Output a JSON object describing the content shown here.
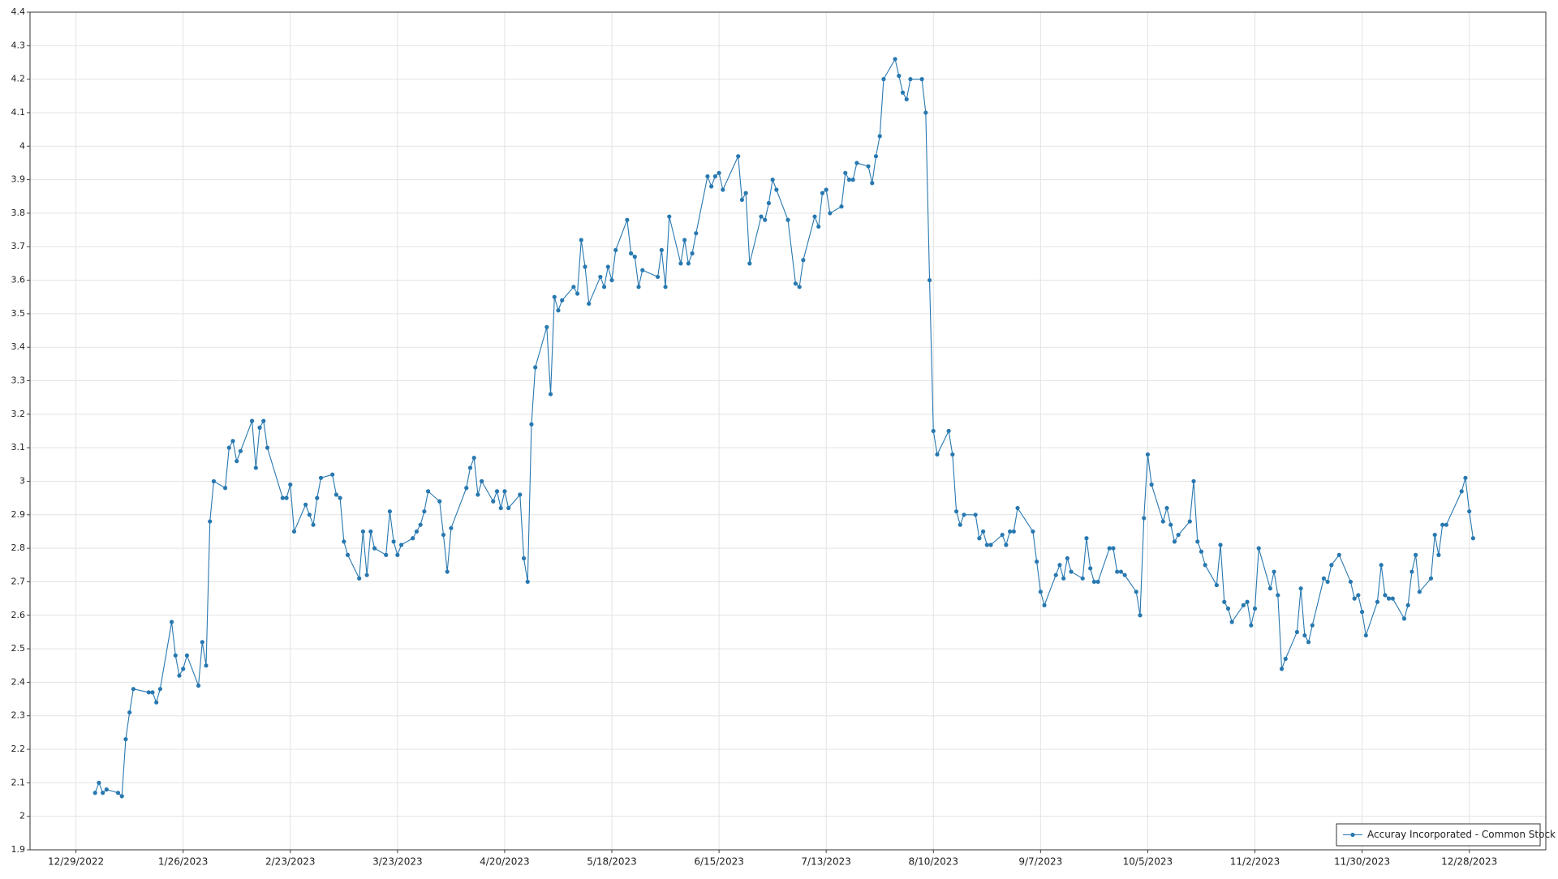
{
  "chart_data": {
    "type": "line",
    "x": [
      "1/3/2023",
      "1/4/2023",
      "1/5/2023",
      "1/6/2023",
      "1/9/2023",
      "1/10/2023",
      "1/11/2023",
      "1/12/2023",
      "1/13/2023",
      "1/17/2023",
      "1/18/2023",
      "1/19/2023",
      "1/20/2023",
      "1/23/2023",
      "1/24/2023",
      "1/25/2023",
      "1/26/2023",
      "1/27/2023",
      "1/30/2023",
      "1/31/2023",
      "2/1/2023",
      "2/2/2023",
      "2/3/2023",
      "2/6/2023",
      "2/7/2023",
      "2/8/2023",
      "2/9/2023",
      "2/10/2023",
      "2/13/2023",
      "2/14/2023",
      "2/15/2023",
      "2/16/2023",
      "2/17/2023",
      "2/21/2023",
      "2/22/2023",
      "2/23/2023",
      "2/24/2023",
      "2/27/2023",
      "2/28/2023",
      "3/1/2023",
      "3/2/2023",
      "3/3/2023",
      "3/6/2023",
      "3/7/2023",
      "3/8/2023",
      "3/9/2023",
      "3/10/2023",
      "3/13/2023",
      "3/14/2023",
      "3/15/2023",
      "3/16/2023",
      "3/17/2023",
      "3/20/2023",
      "3/21/2023",
      "3/22/2023",
      "3/23/2023",
      "3/24/2023",
      "3/27/2023",
      "3/28/2023",
      "3/29/2023",
      "3/30/2023",
      "3/31/2023",
      "4/3/2023",
      "4/4/2023",
      "4/5/2023",
      "4/6/2023",
      "4/10/2023",
      "4/11/2023",
      "4/12/2023",
      "4/13/2023",
      "4/14/2023",
      "4/17/2023",
      "4/18/2023",
      "4/19/2023",
      "4/20/2023",
      "4/21/2023",
      "4/24/2023",
      "4/25/2023",
      "4/26/2023",
      "4/27/2023",
      "4/28/2023",
      "5/1/2023",
      "5/2/2023",
      "5/3/2023",
      "5/4/2023",
      "5/5/2023",
      "5/8/2023",
      "5/9/2023",
      "5/10/2023",
      "5/11/2023",
      "5/12/2023",
      "5/15/2023",
      "5/16/2023",
      "5/17/2023",
      "5/18/2023",
      "5/19/2023",
      "5/22/2023",
      "5/23/2023",
      "5/24/2023",
      "5/25/2023",
      "5/26/2023",
      "5/30/2023",
      "5/31/2023",
      "6/1/2023",
      "6/2/2023",
      "6/5/2023",
      "6/6/2023",
      "6/7/2023",
      "6/8/2023",
      "6/9/2023",
      "6/12/2023",
      "6/13/2023",
      "6/14/2023",
      "6/15/2023",
      "6/16/2023",
      "6/20/2023",
      "6/21/2023",
      "6/22/2023",
      "6/23/2023",
      "6/26/2023",
      "6/27/2023",
      "6/28/2023",
      "6/29/2023",
      "6/30/2023",
      "7/3/2023",
      "7/5/2023",
      "7/6/2023",
      "7/7/2023",
      "7/10/2023",
      "7/11/2023",
      "7/12/2023",
      "7/13/2023",
      "7/14/2023",
      "7/17/2023",
      "7/18/2023",
      "7/19/2023",
      "7/20/2023",
      "7/21/2023",
      "7/24/2023",
      "7/25/2023",
      "7/26/2023",
      "7/27/2023",
      "7/28/2023",
      "7/31/2023",
      "8/1/2023",
      "8/2/2023",
      "8/3/2023",
      "8/4/2023",
      "8/7/2023",
      "8/8/2023",
      "8/9/2023",
      "8/10/2023",
      "8/11/2023",
      "8/14/2023",
      "8/15/2023",
      "8/16/2023",
      "8/17/2023",
      "8/18/2023",
      "8/21/2023",
      "8/22/2023",
      "8/23/2023",
      "8/24/2023",
      "8/25/2023",
      "8/28/2023",
      "8/29/2023",
      "8/30/2023",
      "8/31/2023",
      "9/1/2023",
      "9/5/2023",
      "9/6/2023",
      "9/7/2023",
      "9/8/2023",
      "9/11/2023",
      "9/12/2023",
      "9/13/2023",
      "9/14/2023",
      "9/15/2023",
      "9/18/2023",
      "9/19/2023",
      "9/20/2023",
      "9/21/2023",
      "9/22/2023",
      "9/25/2023",
      "9/26/2023",
      "9/27/2023",
      "9/28/2023",
      "9/29/2023",
      "10/2/2023",
      "10/3/2023",
      "10/4/2023",
      "10/5/2023",
      "10/6/2023",
      "10/9/2023",
      "10/10/2023",
      "10/11/2023",
      "10/12/2023",
      "10/13/2023",
      "10/16/2023",
      "10/17/2023",
      "10/18/2023",
      "10/19/2023",
      "10/20/2023",
      "10/23/2023",
      "10/24/2023",
      "10/25/2023",
      "10/26/2023",
      "10/27/2023",
      "10/30/2023",
      "10/31/2023",
      "11/1/2023",
      "11/2/2023",
      "11/3/2023",
      "11/6/2023",
      "11/7/2023",
      "11/8/2023",
      "11/9/2023",
      "11/10/2023",
      "11/13/2023",
      "11/14/2023",
      "11/15/2023",
      "11/16/2023",
      "11/17/2023",
      "11/20/2023",
      "11/21/2023",
      "11/22/2023",
      "11/24/2023",
      "11/27/2023",
      "11/28/2023",
      "11/29/2023",
      "11/30/2023",
      "12/1/2023",
      "12/4/2023",
      "12/5/2023",
      "12/6/2023",
      "12/7/2023",
      "12/8/2023",
      "12/11/2023",
      "12/12/2023",
      "12/13/2023",
      "12/14/2023",
      "12/15/2023",
      "12/18/2023",
      "12/19/2023",
      "12/20/2023",
      "12/21/2023",
      "12/22/2023",
      "12/26/2023",
      "12/27/2023",
      "12/28/2023",
      "12/29/2023"
    ],
    "series": [
      {
        "name": "Accuray Incorporated - Common Stock",
        "color": "#2878b0",
        "values": [
          2.07,
          2.1,
          2.07,
          2.08,
          2.07,
          2.06,
          2.23,
          2.31,
          2.38,
          2.37,
          2.37,
          2.34,
          2.38,
          2.58,
          2.48,
          2.42,
          2.44,
          2.48,
          2.39,
          2.52,
          2.45,
          2.88,
          3.0,
          2.98,
          3.1,
          3.12,
          3.06,
          3.09,
          3.18,
          3.04,
          3.16,
          3.18,
          3.1,
          2.95,
          2.95,
          2.99,
          2.85,
          2.93,
          2.9,
          2.87,
          2.95,
          3.01,
          3.02,
          2.96,
          2.95,
          2.82,
          2.78,
          2.71,
          2.85,
          2.72,
          2.85,
          2.8,
          2.78,
          2.91,
          2.82,
          2.78,
          2.81,
          2.83,
          2.85,
          2.87,
          2.91,
          2.97,
          2.94,
          2.84,
          2.73,
          2.86,
          2.98,
          3.04,
          3.07,
          2.96,
          3.0,
          2.94,
          2.97,
          2.92,
          2.97,
          2.92,
          2.96,
          2.77,
          2.7,
          3.17,
          3.34,
          3.46,
          3.26,
          3.55,
          3.51,
          3.54,
          3.58,
          3.56,
          3.72,
          3.64,
          3.53,
          3.61,
          3.58,
          3.64,
          3.6,
          3.69,
          3.78,
          3.68,
          3.67,
          3.58,
          3.63,
          3.61,
          3.69,
          3.58,
          3.79,
          3.65,
          3.72,
          3.65,
          3.68,
          3.74,
          3.91,
          3.88,
          3.91,
          3.92,
          3.87,
          3.97,
          3.84,
          3.86,
          3.65,
          3.79,
          3.78,
          3.83,
          3.9,
          3.87,
          3.78,
          3.59,
          3.58,
          3.66,
          3.79,
          3.76,
          3.86,
          3.87,
          3.8,
          3.82,
          3.92,
          3.9,
          3.9,
          3.95,
          3.94,
          3.89,
          3.97,
          4.03,
          4.2,
          4.26,
          4.21,
          4.16,
          4.14,
          4.2,
          4.2,
          4.1,
          3.6,
          3.15,
          3.08,
          3.15,
          3.08,
          2.91,
          2.87,
          2.9,
          2.9,
          2.83,
          2.85,
          2.81,
          2.81,
          2.84,
          2.81,
          2.85,
          2.85,
          2.92,
          2.85,
          2.76,
          2.67,
          2.63,
          2.72,
          2.75,
          2.71,
          2.77,
          2.73,
          2.71,
          2.83,
          2.74,
          2.7,
          2.7,
          2.8,
          2.8,
          2.73,
          2.73,
          2.72,
          2.67,
          2.6,
          2.89,
          3.08,
          2.99,
          2.88,
          2.92,
          2.87,
          2.82,
          2.84,
          2.88,
          3.0,
          2.82,
          2.79,
          2.75,
          2.69,
          2.81,
          2.64,
          2.62,
          2.58,
          2.63,
          2.64,
          2.57,
          2.62,
          2.8,
          2.68,
          2.73,
          2.66,
          2.44,
          2.47,
          2.55,
          2.68,
          2.54,
          2.52,
          2.57,
          2.71,
          2.7,
          2.75,
          2.78,
          2.7,
          2.65,
          2.66,
          2.61,
          2.54,
          2.64,
          2.75,
          2.66,
          2.65,
          2.65,
          2.59,
          2.63,
          2.73,
          2.78,
          2.67,
          2.71,
          2.84,
          2.78,
          2.87,
          2.87,
          2.97,
          3.01,
          2.91,
          2.83
        ]
      }
    ],
    "xlim": [
      "12/17/2022",
      "1/17/2024"
    ],
    "xticks": [
      "12/29/2022",
      "1/26/2023",
      "2/23/2023",
      "3/23/2023",
      "4/20/2023",
      "5/18/2023",
      "6/15/2023",
      "7/13/2023",
      "8/10/2023",
      "9/7/2023",
      "10/5/2023",
      "11/2/2023",
      "11/30/2023",
      "12/28/2023"
    ],
    "ylim": [
      1.9,
      4.4
    ],
    "yticks": [
      1.9,
      2,
      2.1,
      2.2,
      2.3,
      2.4,
      2.5,
      2.6,
      2.7,
      2.8,
      2.9,
      3,
      3.1,
      3.2,
      3.3,
      3.4,
      3.5,
      3.6,
      3.7,
      3.8,
      3.9,
      4,
      4.1,
      4.2,
      4.3,
      4.4
    ],
    "grid": true,
    "legend": "lower right"
  }
}
